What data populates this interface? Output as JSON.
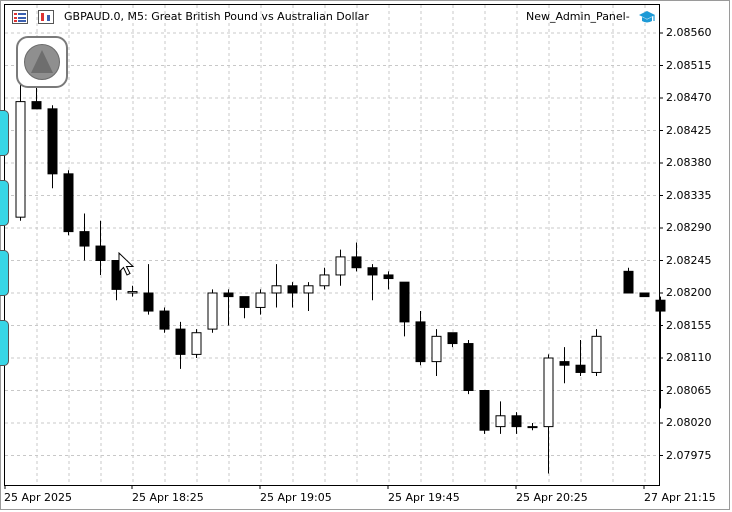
{
  "header": {
    "symbol_title": "GBPAUD.0, M5:  Great British Pound vs Australian Dollar",
    "expert_name": "New_Admin_Panel-"
  },
  "icons": {
    "toolbar_left": "chart-list-icon",
    "toolbar_right": "indicator-icon",
    "expert": "graduation-cap-icon",
    "nav_button": "triangle-up-icon",
    "cursor": "mouse-pointer-icon"
  },
  "colors": {
    "bull_body": "#ffffff",
    "bear_body": "#000000",
    "grid": "#c8c8c8",
    "side_tab": "#38d6e6"
  },
  "chart_data": {
    "type": "candlestick",
    "price_ticks": [
      "2.08560",
      "2.08515",
      "2.08470",
      "2.08425",
      "2.08380",
      "2.08335",
      "2.08290",
      "2.08245",
      "2.08200",
      "2.08155",
      "2.08110",
      "2.08065",
      "2.08020",
      "2.07975"
    ],
    "time_ticks": [
      "25 Apr 2025",
      "25 Apr 18:25",
      "25 Apr 19:05",
      "25 Apr 19:45",
      "25 Apr 20:25",
      "27 Apr 21:15"
    ],
    "ylim": [
      2.0794,
      2.0858
    ],
    "candles": [
      {
        "o": 2.08305,
        "h": 2.0849,
        "l": 2.083,
        "c": 2.08465
      },
      {
        "o": 2.08465,
        "h": 2.0849,
        "l": 2.08455,
        "c": 2.08455
      },
      {
        "o": 2.08455,
        "h": 2.0846,
        "l": 2.08345,
        "c": 2.08365
      },
      {
        "o": 2.08365,
        "h": 2.0837,
        "l": 2.0828,
        "c": 2.08285
      },
      {
        "o": 2.08285,
        "h": 2.0831,
        "l": 2.08245,
        "c": 2.08265
      },
      {
        "o": 2.08265,
        "h": 2.083,
        "l": 2.08225,
        "c": 2.08245
      },
      {
        "o": 2.08245,
        "h": 2.08245,
        "l": 2.0819,
        "c": 2.08205
      },
      {
        "o": 2.082,
        "h": 2.0821,
        "l": 2.08195,
        "c": 2.08202
      },
      {
        "o": 2.082,
        "h": 2.0824,
        "l": 2.0817,
        "c": 2.08175
      },
      {
        "o": 2.08175,
        "h": 2.0818,
        "l": 2.08145,
        "c": 2.0815
      },
      {
        "o": 2.0815,
        "h": 2.0816,
        "l": 2.08095,
        "c": 2.08115
      },
      {
        "o": 2.08115,
        "h": 2.0815,
        "l": 2.0811,
        "c": 2.08145
      },
      {
        "o": 2.0815,
        "h": 2.08205,
        "l": 2.08145,
        "c": 2.082
      },
      {
        "o": 2.082,
        "h": 2.08205,
        "l": 2.08155,
        "c": 2.08195
      },
      {
        "o": 2.08195,
        "h": 2.08195,
        "l": 2.08165,
        "c": 2.0818
      },
      {
        "o": 2.0818,
        "h": 2.08205,
        "l": 2.0817,
        "c": 2.082
      },
      {
        "o": 2.082,
        "h": 2.0824,
        "l": 2.0818,
        "c": 2.0821
      },
      {
        "o": 2.0821,
        "h": 2.08215,
        "l": 2.0818,
        "c": 2.082
      },
      {
        "o": 2.082,
        "h": 2.08215,
        "l": 2.08175,
        "c": 2.0821
      },
      {
        "o": 2.0821,
        "h": 2.08235,
        "l": 2.08205,
        "c": 2.08225
      },
      {
        "o": 2.08225,
        "h": 2.0826,
        "l": 2.0821,
        "c": 2.0825
      },
      {
        "o": 2.0825,
        "h": 2.0827,
        "l": 2.0823,
        "c": 2.08235
      },
      {
        "o": 2.08235,
        "h": 2.0824,
        "l": 2.0819,
        "c": 2.08225
      },
      {
        "o": 2.08225,
        "h": 2.0823,
        "l": 2.08205,
        "c": 2.0822
      },
      {
        "o": 2.08215,
        "h": 2.08215,
        "l": 2.0814,
        "c": 2.0816
      },
      {
        "o": 2.0816,
        "h": 2.08175,
        "l": 2.081,
        "c": 2.08105
      },
      {
        "o": 2.08105,
        "h": 2.0815,
        "l": 2.08085,
        "c": 2.0814
      },
      {
        "o": 2.08145,
        "h": 2.08145,
        "l": 2.08125,
        "c": 2.0813
      },
      {
        "o": 2.0813,
        "h": 2.08135,
        "l": 2.0806,
        "c": 2.08065
      },
      {
        "o": 2.08065,
        "h": 2.08065,
        "l": 2.08005,
        "c": 2.0801
      },
      {
        "o": 2.08015,
        "h": 2.0805,
        "l": 2.08005,
        "c": 2.0803
      },
      {
        "o": 2.0803,
        "h": 2.08035,
        "l": 2.08005,
        "c": 2.08015
      },
      {
        "o": 2.08015,
        "h": 2.0802,
        "l": 2.0801,
        "c": 2.08015
      },
      {
        "o": 2.08015,
        "h": 2.08115,
        "l": 2.0795,
        "c": 2.0811
      },
      {
        "o": 2.08105,
        "h": 2.08125,
        "l": 2.08075,
        "c": 2.081
      },
      {
        "o": 2.081,
        "h": 2.08135,
        "l": 2.08085,
        "c": 2.0809
      },
      {
        "o": 2.0809,
        "h": 2.0815,
        "l": 2.08085,
        "c": 2.0814
      },
      null,
      {
        "o": 2.0823,
        "h": 2.08235,
        "l": 2.082,
        "c": 2.082
      },
      {
        "o": 2.082,
        "h": 2.082,
        "l": 2.08195,
        "c": 2.08195
      },
      {
        "o": 2.0819,
        "h": 2.08195,
        "l": 2.0804,
        "c": 2.08175
      }
    ]
  }
}
